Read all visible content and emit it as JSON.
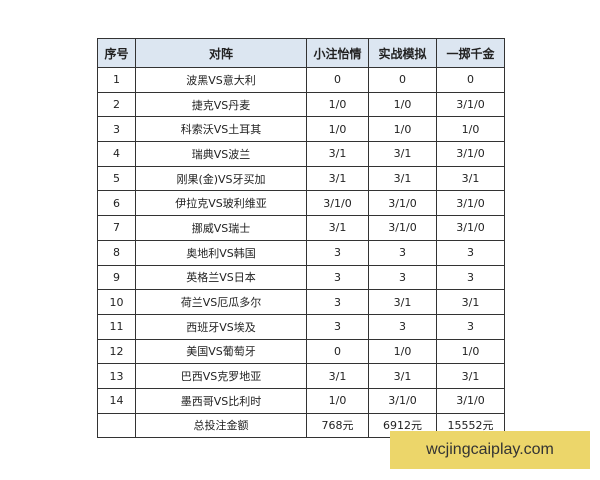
{
  "table": {
    "headers": [
      "序号",
      "对阵",
      "小注怡情",
      "实战模拟",
      "一掷千金"
    ],
    "rows": [
      [
        "1",
        "波黑VS意大利",
        "0",
        "0",
        "0"
      ],
      [
        "2",
        "捷克VS丹麦",
        "1/0",
        "1/0",
        "3/1/0"
      ],
      [
        "3",
        "科索沃VS土耳其",
        "1/0",
        "1/0",
        "1/0"
      ],
      [
        "4",
        "瑞典VS波兰",
        "3/1",
        "3/1",
        "3/1/0"
      ],
      [
        "5",
        "刚果(金)VS牙买加",
        "3/1",
        "3/1",
        "3/1"
      ],
      [
        "6",
        "伊拉克VS玻利维亚",
        "3/1/0",
        "3/1/0",
        "3/1/0"
      ],
      [
        "7",
        "挪威VS瑞士",
        "3/1",
        "3/1/0",
        "3/1/0"
      ],
      [
        "8",
        "奥地利VS韩国",
        "3",
        "3",
        "3"
      ],
      [
        "9",
        "英格兰VS日本",
        "3",
        "3",
        "3"
      ],
      [
        "10",
        "荷兰VS厄瓜多尔",
        "3",
        "3/1",
        "3/1"
      ],
      [
        "11",
        "西班牙VS埃及",
        "3",
        "3",
        "3"
      ],
      [
        "12",
        "美国VS葡萄牙",
        "0",
        "1/0",
        "1/0"
      ],
      [
        "13",
        "巴西VS克罗地亚",
        "3/1",
        "3/1",
        "3/1"
      ],
      [
        "14",
        "墨西哥VS比利时",
        "1/0",
        "3/1/0",
        "3/1/0"
      ]
    ],
    "total": [
      "",
      "总投注金额",
      "768元",
      "6912元",
      "15552元"
    ]
  },
  "watermark": "wcjingcaiplay.com",
  "colors": {
    "header_bg": "#dce6f1",
    "watermark_bg": "#ecd66a"
  }
}
